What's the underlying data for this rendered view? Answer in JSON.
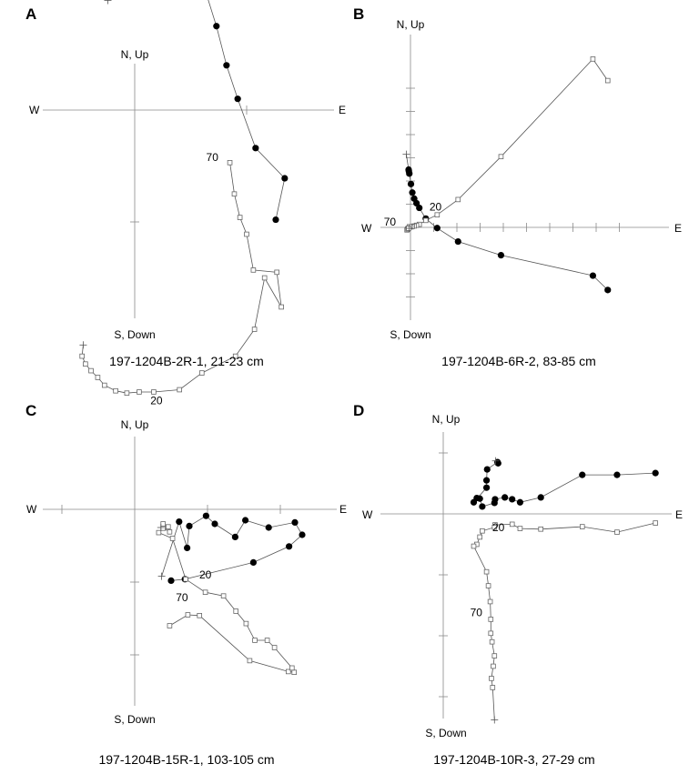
{
  "chart_data": [
    {
      "type": "scatter",
      "panel": "A",
      "caption": "197-1204B-2R-1, 21-23 cm",
      "axis_labels": {
        "north": "N, Up",
        "south": "S, Down",
        "west": "W",
        "east": "E"
      },
      "tick_spacing": 1,
      "tick_counts": {
        "east": 1,
        "west": 0,
        "north": 0,
        "south": 1
      },
      "point_labels": [
        {
          "text": "70",
          "series": "vertical",
          "index": 0,
          "dx": -26,
          "dy": -2
        },
        {
          "text": "20",
          "series": "vertical",
          "index": 11,
          "dx": -32,
          "dy": 16
        }
      ],
      "series": [
        {
          "marker": "filled-circle",
          "end_marker": "plus",
          "points": [
            [
              1.26,
              -0.98
            ],
            [
              1.34,
              -0.61
            ],
            [
              1.08,
              -0.34
            ],
            [
              0.92,
              0.1
            ],
            [
              0.82,
              0.4
            ],
            [
              0.73,
              0.75
            ],
            [
              0.63,
              1.07
            ],
            [
              0.43,
              1.08
            ],
            [
              0.26,
              1.28
            ],
            [
              0.17,
              1.1
            ],
            [
              0.05,
              1.2
            ],
            [
              -0.09,
              1.17
            ],
            [
              -0.21,
              1.12
            ],
            [
              -0.26,
              1.06
            ],
            [
              -0.24,
              0.98
            ]
          ]
        },
        {
          "marker": "open-square",
          "end_marker": "plus",
          "points": [
            [
              0.85,
              -0.47
            ],
            [
              0.89,
              -0.75
            ],
            [
              0.94,
              -0.96
            ],
            [
              1,
              -1.11
            ],
            [
              1.06,
              -1.43
            ],
            [
              1.27,
              -1.45
            ],
            [
              1.31,
              -1.76
            ],
            [
              1.16,
              -1.5
            ],
            [
              1.07,
              -1.96
            ],
            [
              0.9,
              -2.2
            ],
            [
              0.6,
              -2.35
            ],
            [
              0.4,
              -2.5
            ],
            [
              0.17,
              -2.52
            ],
            [
              0.04,
              -2.52
            ],
            [
              -0.07,
              -2.53
            ],
            [
              -0.17,
              -2.51
            ],
            [
              -0.27,
              -2.46
            ],
            [
              -0.33,
              -2.39
            ],
            [
              -0.39,
              -2.33
            ],
            [
              -0.44,
              -2.27
            ],
            [
              -0.47,
              -2.2
            ],
            [
              -0.46,
              -2.1
            ]
          ]
        }
      ]
    },
    {
      "type": "scatter",
      "panel": "B",
      "caption": "197-1204B-6R-2, 83-85 cm",
      "axis_labels": {
        "north": "N, Up",
        "south": "S, Down",
        "west": "W",
        "east": "E"
      },
      "tick_spacing": 1,
      "tick_counts": {
        "east": 9,
        "west": 0,
        "north": 6,
        "south": 3
      },
      "point_labels": [
        {
          "text": "20",
          "series": "horizontal",
          "index": 5,
          "dx": 4,
          "dy": -9
        },
        {
          "text": "70",
          "series": "vertical",
          "index": 11,
          "dx": -28,
          "dy": -1
        }
      ],
      "series": [
        {
          "marker": "filled-circle",
          "end_marker": "plus",
          "points": [
            [
              8.5,
              -2.7
            ],
            [
              7.86,
              -2.08
            ],
            [
              3.9,
              -1.2
            ],
            [
              2.05,
              -0.61
            ],
            [
              1.15,
              -0.03
            ],
            [
              0.66,
              0.38
            ],
            [
              0.38,
              0.84
            ],
            [
              0.26,
              1.04
            ],
            [
              0.16,
              1.24
            ],
            [
              0.08,
              1.5
            ],
            [
              0.02,
              1.87
            ],
            [
              -0.05,
              2.32
            ],
            [
              -0.07,
              2.43
            ],
            [
              -0.08,
              2.49
            ],
            [
              -0.18,
              3.15
            ]
          ]
        },
        {
          "marker": "open-square",
          "end_marker": "plus",
          "points": [
            [
              8.5,
              6.33
            ],
            [
              7.86,
              7.26
            ],
            [
              3.9,
              3.05
            ],
            [
              2.05,
              1.2
            ],
            [
              1.15,
              0.54
            ],
            [
              0.66,
              0.3
            ],
            [
              0.38,
              0.13
            ],
            [
              0.26,
              0.09
            ],
            [
              0.16,
              0.06
            ],
            [
              0.08,
              0.04
            ],
            [
              0.02,
              0.02
            ],
            [
              -0.05,
              0.03
            ],
            [
              -0.1,
              -0.04
            ],
            [
              -0.12,
              -0.07
            ],
            [
              -0.15,
              -0.11
            ],
            [
              -0.11,
              -0.07
            ],
            [
              -0.08,
              -0.04
            ],
            [
              -0.06,
              -0.04
            ]
          ]
        }
      ]
    },
    {
      "type": "scatter",
      "panel": "C",
      "caption": "197-1204B-15R-1, 103-105 cm",
      "axis_labels": {
        "north": "N, Up",
        "south": "S, Down",
        "west": "W",
        "east": "E"
      },
      "tick_spacing": 1,
      "tick_counts": {
        "east": 2,
        "west": 1,
        "north": 0,
        "south": 2
      },
      "point_labels": [
        {
          "text": "70",
          "series": "vertical",
          "index": 2,
          "dx": -26,
          "dy": -16
        },
        {
          "text": "20",
          "series": "vertical",
          "index": 14,
          "dx": 15,
          "dy": -1
        }
      ],
      "series": [
        {
          "marker": "filled-circle",
          "end_marker": "plus",
          "points": [
            [
              0.5,
              -0.98
            ],
            [
              0.69,
              -0.96
            ],
            [
              1.63,
              -0.73
            ],
            [
              2.12,
              -0.51
            ],
            [
              2.3,
              -0.35
            ],
            [
              2.2,
              -0.18
            ],
            [
              1.84,
              -0.25
            ],
            [
              1.52,
              -0.15
            ],
            [
              1.38,
              -0.38
            ],
            [
              1.1,
              -0.2
            ],
            [
              0.98,
              -0.09
            ],
            [
              0.75,
              -0.23
            ],
            [
              0.72,
              -0.53
            ],
            [
              0.61,
              -0.17
            ],
            [
              0.37,
              -0.92
            ]
          ]
        },
        {
          "marker": "open-square",
          "end_marker": "plus",
          "points": [
            [
              0.48,
              -1.6
            ],
            [
              0.73,
              -1.45
            ],
            [
              0.89,
              -1.46
            ],
            [
              1.58,
              -2.08
            ],
            [
              2.11,
              -2.23
            ],
            [
              2.19,
              -2.24
            ],
            [
              2.16,
              -2.18
            ],
            [
              1.92,
              -1.9
            ],
            [
              1.82,
              -1.8
            ],
            [
              1.65,
              -1.8
            ],
            [
              1.53,
              -1.57
            ],
            [
              1.39,
              -1.4
            ],
            [
              1.22,
              -1.19
            ],
            [
              0.97,
              -1.14
            ],
            [
              0.7,
              -0.96
            ],
            [
              0.52,
              -0.4
            ],
            [
              0.33,
              -0.32
            ],
            [
              0.39,
              -0.26
            ],
            [
              0.48,
              -0.31
            ],
            [
              0.46,
              -0.24
            ],
            [
              0.39,
              -0.2
            ],
            [
              0.36,
              -0.25
            ]
          ]
        }
      ]
    },
    {
      "type": "scatter",
      "panel": "D",
      "caption": "197-1204B-10R-3, 27-29 cm",
      "axis_labels": {
        "north": "N, Up",
        "south": "S, Down",
        "west": "W",
        "east": "E"
      },
      "tick_spacing": 1,
      "tick_counts": {
        "east": 0,
        "west": 0,
        "north": 1,
        "south": 3
      },
      "point_labels": [
        {
          "text": "20",
          "series": "vertical",
          "index": 6,
          "dx": -3,
          "dy": 7
        },
        {
          "text": "70",
          "series": "vertical",
          "index": 14,
          "dx": -22,
          "dy": 16
        }
      ],
      "series": [
        {
          "marker": "filled-circle",
          "end_marker": "plus",
          "points": [
            [
              3.48,
              0.67
            ],
            [
              2.85,
              0.64
            ],
            [
              2.28,
              0.64
            ],
            [
              1.6,
              0.27
            ],
            [
              1.26,
              0.19
            ],
            [
              1.13,
              0.24
            ],
            [
              1.01,
              0.27
            ],
            [
              0.85,
              0.24
            ],
            [
              0.84,
              0.18
            ],
            [
              0.64,
              0.12
            ],
            [
              0.6,
              0.25
            ],
            [
              0.55,
              0.26
            ],
            [
              0.5,
              0.19
            ],
            [
              0.71,
              0.43
            ],
            [
              0.71,
              0.55
            ],
            [
              0.72,
              0.73
            ],
            [
              0.89,
              0.85
            ],
            [
              0.9,
              0.83
            ],
            [
              0.86,
              0.87
            ]
          ]
        },
        {
          "marker": "open-square",
          "end_marker": "plus",
          "points": [
            [
              3.48,
              -0.15
            ],
            [
              2.85,
              -0.3
            ],
            [
              2.28,
              -0.21
            ],
            [
              1.6,
              -0.25
            ],
            [
              1.26,
              -0.24
            ],
            [
              1.13,
              -0.17
            ],
            [
              0.85,
              -0.18
            ],
            [
              0.84,
              -0.22
            ],
            [
              0.64,
              -0.28
            ],
            [
              0.6,
              -0.38
            ],
            [
              0.55,
              -0.5
            ],
            [
              0.5,
              -0.53
            ],
            [
              0.71,
              -0.95
            ],
            [
              0.74,
              -1.18
            ],
            [
              0.77,
              -1.44
            ],
            [
              0.78,
              -1.73
            ],
            [
              0.78,
              -1.96
            ],
            [
              0.8,
              -2.1
            ],
            [
              0.84,
              -2.33
            ],
            [
              0.82,
              -2.5
            ],
            [
              0.79,
              -2.7
            ],
            [
              0.81,
              -2.85
            ],
            [
              0.84,
              -3.38
            ]
          ]
        }
      ]
    }
  ]
}
